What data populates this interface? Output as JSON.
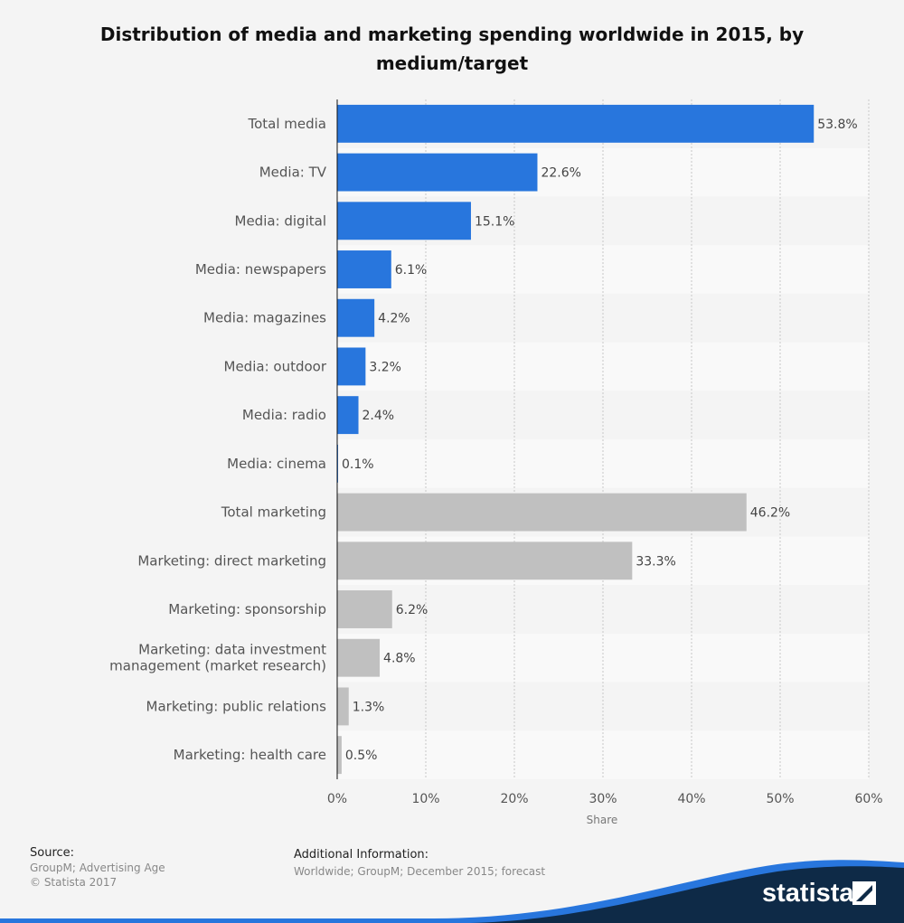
{
  "title": "Distribution of media and marketing spending worldwide in 2015, by medium/target",
  "chart_data": {
    "type": "bar",
    "orientation": "horizontal",
    "categories": [
      "Total media",
      "Media: TV",
      "Media: digital",
      "Media: newspapers",
      "Media: magazines",
      "Media: outdoor",
      "Media: radio",
      "Media: cinema",
      "Total marketing",
      "Marketing: direct marketing",
      "Marketing: sponsorship",
      "Marketing: data investment management (market research)",
      "Marketing: public relations",
      "Marketing: health care"
    ],
    "category_lines": [
      [
        "Total media"
      ],
      [
        "Media: TV"
      ],
      [
        "Media: digital"
      ],
      [
        "Media: newspapers"
      ],
      [
        "Media: magazines"
      ],
      [
        "Media: outdoor"
      ],
      [
        "Media: radio"
      ],
      [
        "Media: cinema"
      ],
      [
        "Total marketing"
      ],
      [
        "Marketing: direct marketing"
      ],
      [
        "Marketing: sponsorship"
      ],
      [
        "Marketing: data investment",
        "management (market research)"
      ],
      [
        "Marketing: public relations"
      ],
      [
        "Marketing: health care"
      ]
    ],
    "values": [
      53.8,
      22.6,
      15.1,
      6.1,
      4.2,
      3.2,
      2.4,
      0.1,
      46.2,
      33.3,
      6.2,
      4.8,
      1.3,
      0.5
    ],
    "value_labels": [
      "53.8%",
      "22.6%",
      "15.1%",
      "6.1%",
      "4.2%",
      "3.2%",
      "2.4%",
      "0.1%",
      "46.2%",
      "33.3%",
      "6.2%",
      "4.8%",
      "1.3%",
      "0.5%"
    ],
    "bar_colors": [
      "#2876dd",
      "#2876dd",
      "#2876dd",
      "#2876dd",
      "#2876dd",
      "#2876dd",
      "#2876dd",
      "#2876dd",
      "#c0c0c0",
      "#c0c0c0",
      "#c0c0c0",
      "#c0c0c0",
      "#c0c0c0",
      "#c0c0c0"
    ],
    "xlabel": "Share",
    "xlim": [
      0,
      60
    ],
    "xticks": [
      0,
      10,
      20,
      30,
      40,
      50,
      60
    ],
    "xtick_labels": [
      "0%",
      "10%",
      "20%",
      "30%",
      "40%",
      "50%",
      "60%"
    ],
    "grid": true
  },
  "footer": {
    "source_heading": "Source:",
    "source_lines": [
      "GroupM; Advertising Age",
      "© Statista 2017"
    ],
    "additional_heading": "Additional Information:",
    "additional_text": "Worldwide; GroupM; December 2015; forecast"
  },
  "brand": {
    "name": "statista",
    "wave_color": "#2876dd",
    "dark_color": "#0e2a47"
  }
}
